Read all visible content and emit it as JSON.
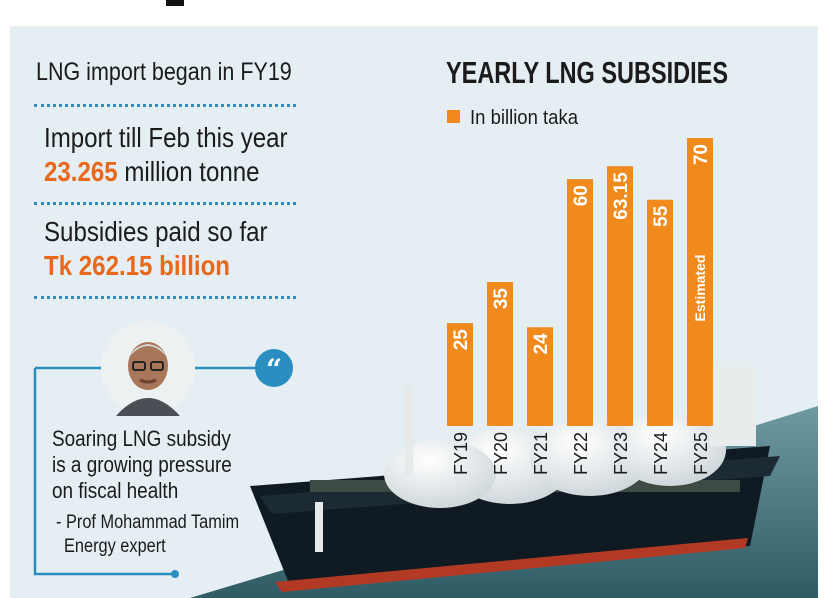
{
  "left_panel": {
    "intro": "LNG import began in FY19",
    "import_label": "Import till Feb this year",
    "import_value": "23.265",
    "import_unit": "million tonne",
    "subsidy_label": "Subsidies paid so far",
    "subsidy_value": "Tk 262.15 billion"
  },
  "quote": {
    "lines": [
      "Soaring LNG subsidy",
      "is a growing pressure",
      "on fiscal health"
    ],
    "attribution": "- Prof Mohammad Tamim",
    "role": "Energy expert"
  },
  "colors": {
    "accent": "#f08a1c",
    "highlight": "#e8681c",
    "rule": "#2a8fc0",
    "panel": "#e4eef3"
  },
  "chart_data": {
    "type": "bar",
    "title": "YEARLY LNG SUBSIDIES",
    "legend": "In billion taka",
    "legend_position": "top-left",
    "categories": [
      "FY19",
      "FY20",
      "FY21",
      "FY22",
      "FY23",
      "FY24",
      "FY25"
    ],
    "values": [
      25,
      35,
      24,
      60,
      63.15,
      55,
      70
    ],
    "value_labels": [
      "25",
      "35",
      "24",
      "60",
      "63.15",
      "55",
      "70"
    ],
    "annotations": [
      {
        "category": "FY25",
        "text": "Estimated"
      }
    ],
    "ylim": [
      0,
      70
    ],
    "grid": false
  }
}
